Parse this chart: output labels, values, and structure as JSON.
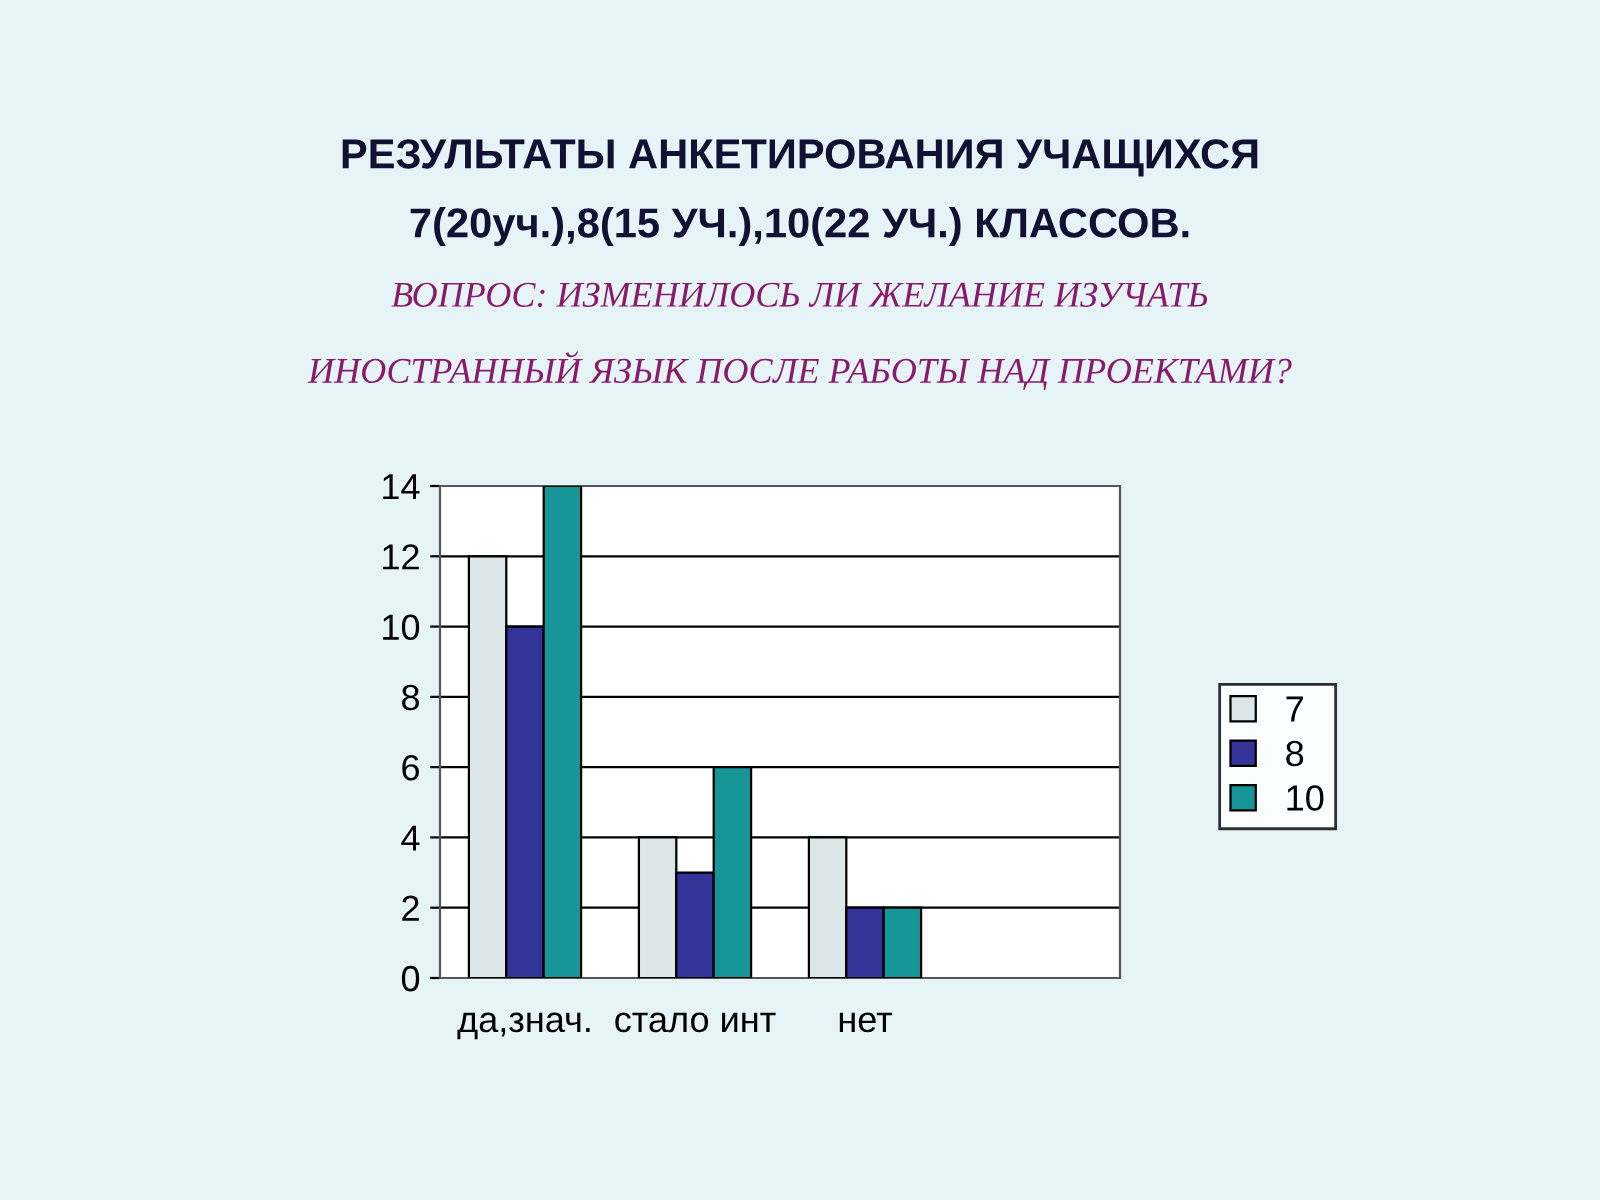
{
  "chart_data": {
    "type": "bar",
    "title": "РЕЗУЛЬТАТЫ АНКЕТИРОВАНИЯ УЧАЩИХСЯ\n7(20уч.),8(15 УЧ.),10(22 УЧ.) КЛАССОВ.",
    "subtitle": "ВОПРОС: ИЗМЕНИЛОСЬ ЛИ ЖЕЛАНИЕ ИЗУЧАТЬ\nИНОСТРАННЫЙ ЯЗЫК ПОСЛЕ РАБОТЫ НАД ПРОЕКТАМИ?",
    "categories": [
      "да,знач.",
      "стало инт",
      "нет",
      null
    ],
    "series": [
      {
        "name": "7",
        "color": "#dce6e6",
        "values": [
          12,
          4,
          4,
          null
        ]
      },
      {
        "name": "8",
        "color": "#333399",
        "values": [
          10,
          3,
          2,
          null
        ]
      },
      {
        "name": "10",
        "color": "#169696",
        "values": [
          14,
          6,
          2,
          null
        ]
      }
    ],
    "ylim": [
      0,
      14
    ],
    "yticks": [
      0,
      2,
      4,
      6,
      8,
      10,
      12,
      14
    ],
    "grid": "y",
    "legend": "right"
  }
}
